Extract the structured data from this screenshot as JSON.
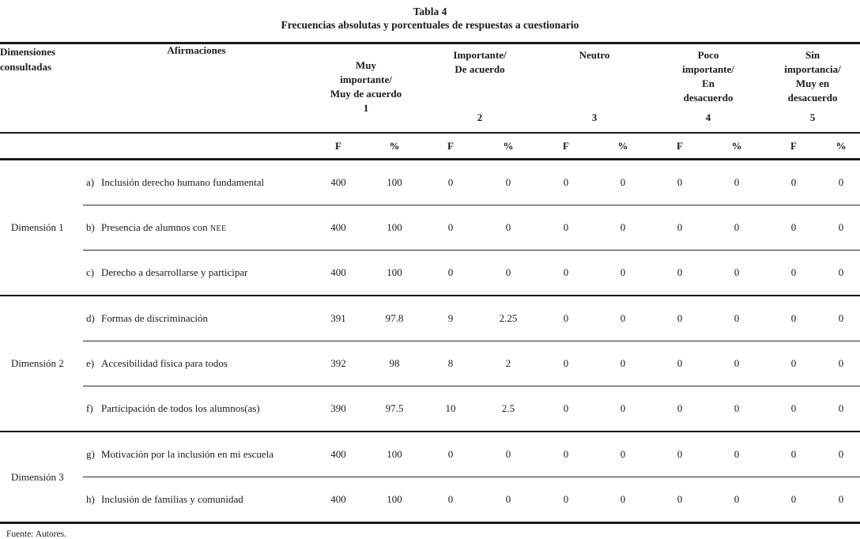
{
  "title": "Tabla 4",
  "subtitle": "Frecuencias absolutas y porcentuales de respuestas a cuestionario",
  "columns": {
    "dimensiones": "Dimensiones\nconsultadas",
    "afirmaciones": "Afirmaciones"
  },
  "scale_headers": [
    {
      "label": "Muy\nimportante/\nMuy de acuerdo",
      "number": "1"
    },
    {
      "label": "Importante/\nDe acuerdo",
      "number": "2"
    },
    {
      "label": "Neutro",
      "number": "3"
    },
    {
      "label": "Poco\nimportante/\nEn\ndesacuerdo",
      "number": "4"
    },
    {
      "label": "Sin\nimportancia/\nMuy en\ndesacuerdo",
      "number": "5"
    }
  ],
  "subheaders": {
    "f": "F",
    "pct": "%"
  },
  "groups": [
    {
      "dimension": "Dimensión 1",
      "rows": [
        {
          "letter": "a)",
          "text": "Inclusión derecho humano fundamental",
          "values": [
            "400",
            "100",
            "0",
            "0",
            "0",
            "0",
            "0",
            "0",
            "0",
            "0"
          ]
        },
        {
          "letter": "b)",
          "text": "Presencia de alumnos con ",
          "smallcaps": "NEE",
          "values": [
            "400",
            "100",
            "0",
            "0",
            "0",
            "0",
            "0",
            "0",
            "0",
            "0"
          ]
        },
        {
          "letter": "c)",
          "text": "Derecho a desarrollarse y participar",
          "values": [
            "400",
            "100",
            "0",
            "0",
            "0",
            "0",
            "0",
            "0",
            "0",
            "0"
          ]
        }
      ]
    },
    {
      "dimension": "Dimensión 2",
      "rows": [
        {
          "letter": "d)",
          "text": "Formas de discriminación",
          "values": [
            "391",
            "97.8",
            "9",
            "2.25",
            "0",
            "0",
            "0",
            "0",
            "0",
            "0"
          ]
        },
        {
          "letter": "e)",
          "text": "Accesibilidad física para todos",
          "values": [
            "392",
            "98",
            "8",
            "2",
            "0",
            "0",
            "0",
            "0",
            "0",
            "0"
          ]
        },
        {
          "letter": "f)",
          "text": "Participación de todos los alumnos(as)",
          "values": [
            "390",
            "97.5",
            "10",
            "2.5",
            "0",
            "0",
            "0",
            "0",
            "0",
            "0"
          ]
        }
      ]
    },
    {
      "dimension": "Dimensión 3",
      "rows": [
        {
          "letter": "g)",
          "text": "Motivación por la inclusión en mi escuela",
          "values": [
            "400",
            "100",
            "0",
            "0",
            "0",
            "0",
            "0",
            "0",
            "0",
            "0"
          ]
        },
        {
          "letter": "h)",
          "text": "Inclusión de familias y comunidad",
          "values": [
            "400",
            "100",
            "0",
            "0",
            "0",
            "0",
            "0",
            "0",
            "0",
            "0"
          ]
        }
      ]
    }
  ],
  "footer": "Fuente: Autores."
}
